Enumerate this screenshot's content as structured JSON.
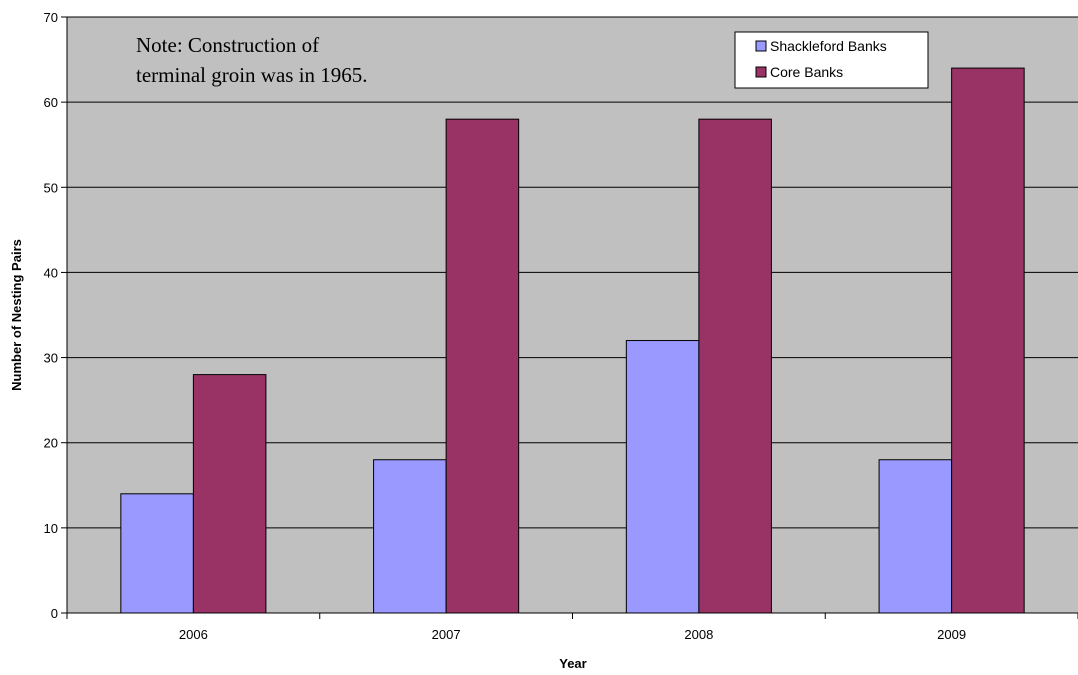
{
  "chart_data": {
    "type": "bar",
    "categories": [
      "2006",
      "2007",
      "2008",
      "2009"
    ],
    "series": [
      {
        "name": "Shackleford Banks",
        "values": [
          14,
          18,
          32,
          18
        ],
        "color": "#9999ff"
      },
      {
        "name": "Core Banks",
        "values": [
          28,
          58,
          58,
          64
        ],
        "color": "#993366"
      }
    ],
    "xlabel": "Year",
    "ylabel": "Number of Nesting Pairs",
    "ylim": [
      0,
      70
    ],
    "yticks": [
      0,
      10,
      20,
      30,
      40,
      50,
      60,
      70
    ],
    "grid": true,
    "plot_background": "#c0c0c0",
    "legend_position": "top-right",
    "annotation": {
      "lines": [
        "Note:  Construction of",
        "terminal groin was in 1965."
      ]
    }
  }
}
